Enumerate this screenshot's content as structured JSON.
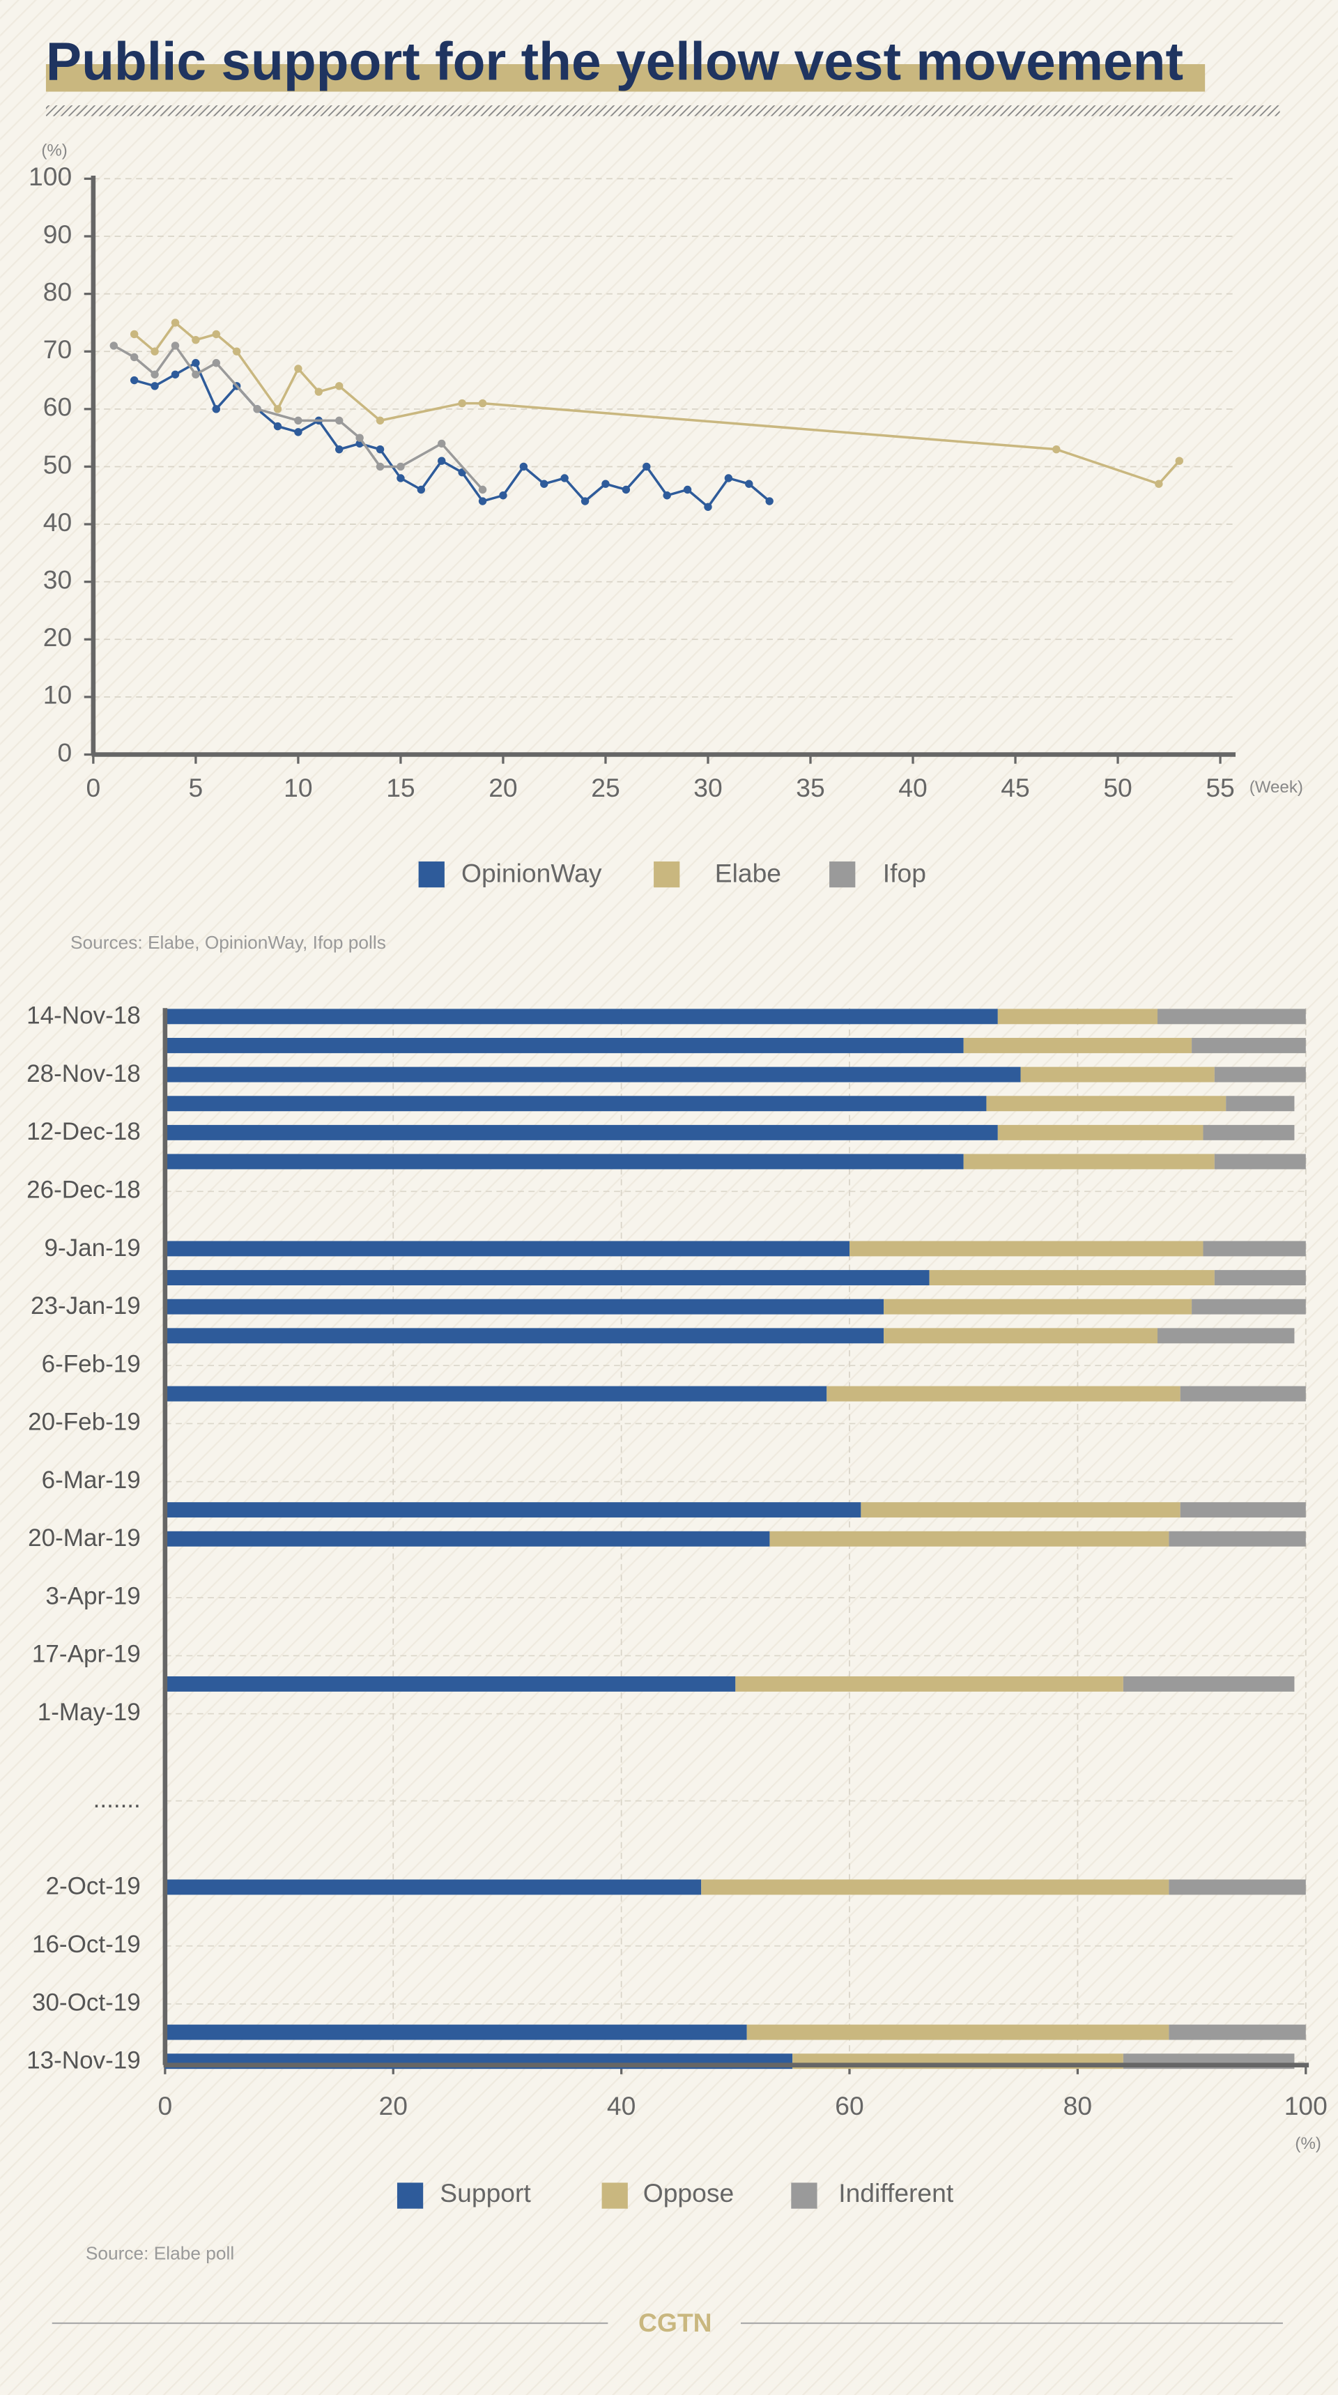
{
  "title": "Public support for the yellow vest movement",
  "chart_data": [
    {
      "type": "line",
      "y_unit": "(%)",
      "x_unit": "(Week)",
      "xlim": [
        0,
        55
      ],
      "xticks": [
        0,
        5,
        10,
        15,
        20,
        25,
        30,
        35,
        40,
        45,
        50,
        55
      ],
      "ylim": [
        0,
        100
      ],
      "yticks": [
        0,
        10,
        20,
        30,
        40,
        50,
        60,
        70,
        80,
        90,
        100
      ],
      "grid": true,
      "series": [
        {
          "name": "OpinionWay",
          "color": "#2e5b9a",
          "x": [
            2,
            3,
            4,
            5,
            6,
            7,
            8,
            9,
            10,
            11,
            12,
            13,
            14,
            15,
            16,
            17,
            18,
            19,
            20,
            21,
            22,
            23,
            24,
            25,
            26,
            27,
            28,
            29,
            30,
            31,
            32,
            33
          ],
          "values": [
            65,
            64,
            66,
            68,
            60,
            64,
            60,
            57,
            56,
            58,
            53,
            54,
            53,
            48,
            46,
            51,
            49,
            44,
            45,
            50,
            47,
            48,
            44,
            47,
            46,
            50,
            45,
            46,
            43,
            48,
            47,
            44
          ]
        },
        {
          "name": "Elabe",
          "color": "#c9b77f",
          "x": [
            2,
            3,
            4,
            5,
            6,
            7,
            9,
            10,
            11,
            12,
            14,
            18,
            19,
            47,
            52,
            53
          ],
          "values": [
            73,
            70,
            75,
            72,
            73,
            70,
            60,
            67,
            63,
            64,
            58,
            61,
            61,
            53,
            47,
            51
          ]
        },
        {
          "name": "Ifop",
          "color": "#9a9a9a",
          "x": [
            1,
            2,
            3,
            4,
            5,
            6,
            8,
            10,
            12,
            13,
            14,
            15,
            17,
            19
          ],
          "values": [
            71,
            69,
            66,
            71,
            66,
            68,
            60,
            58,
            58,
            55,
            50,
            50,
            54,
            46
          ]
        }
      ],
      "source": "Sources: Elabe, OpinionWay, Ifop polls"
    },
    {
      "type": "stacked_barh",
      "x_unit": "(%)",
      "categories": [
        "14-Nov-18",
        null,
        "28-Nov-18",
        null,
        "12-Dec-18",
        null,
        "26-Dec-18",
        null,
        "9-Jan-19",
        null,
        "23-Jan-19",
        null,
        "6-Feb-19",
        null,
        "20-Feb-19",
        null,
        "6-Mar-19",
        null,
        "20-Mar-19",
        null,
        "3-Apr-19",
        null,
        "17-Apr-19",
        null,
        "1-May-19",
        null,
        null,
        ".......",
        null,
        null,
        "2-Oct-19",
        null,
        "16-Oct-19",
        null,
        "30-Oct-19",
        null,
        "13-Nov-19"
      ],
      "xlim": [
        0,
        100
      ],
      "xticks": [
        0,
        20,
        40,
        60,
        80,
        100
      ],
      "grid": true,
      "series": [
        {
          "name": "Support",
          "color": "#2e5b9a",
          "values": [
            73,
            70,
            75,
            72,
            73,
            70,
            null,
            null,
            60,
            67,
            63,
            63,
            null,
            58,
            null,
            null,
            null,
            61,
            53,
            null,
            null,
            null,
            null,
            50,
            null,
            null,
            null,
            null,
            null,
            null,
            47,
            null,
            null,
            null,
            null,
            51,
            55
          ]
        },
        {
          "name": "Oppose",
          "color": "#c9b77f",
          "values": [
            14,
            20,
            17,
            21,
            18,
            22,
            null,
            null,
            31,
            25,
            27,
            24,
            null,
            31,
            null,
            null,
            null,
            28,
            35,
            null,
            null,
            null,
            null,
            34,
            null,
            null,
            null,
            null,
            null,
            null,
            41,
            null,
            null,
            null,
            null,
            37,
            29
          ]
        },
        {
          "name": "Indifferent",
          "color": "#9a9a9a",
          "values": [
            13,
            10,
            8,
            6,
            8,
            8,
            null,
            null,
            9,
            8,
            10,
            12,
            null,
            11,
            null,
            null,
            null,
            11,
            12,
            null,
            null,
            null,
            null,
            15,
            null,
            null,
            null,
            null,
            null,
            null,
            12,
            null,
            null,
            null,
            null,
            12,
            15
          ]
        }
      ],
      "source": "Source: Elabe poll"
    }
  ],
  "footer": {
    "brand": "CGTN"
  }
}
